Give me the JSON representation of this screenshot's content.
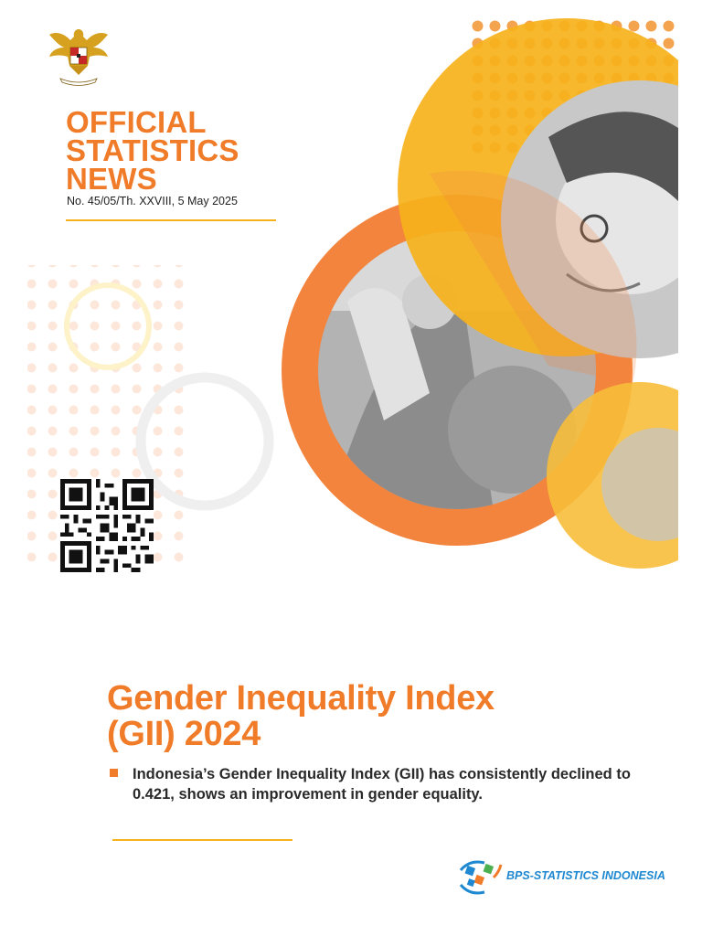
{
  "header": {
    "title_lines": [
      "OFFICIAL",
      "STATISTICS",
      "NEWS"
    ],
    "issue": "No. 45/05/Th. XXVIII, 5 May 2025"
  },
  "release": {
    "title_lines": [
      "Gender Inequality Index",
      "(GII) 2024"
    ],
    "highlight": "Indonesia’s Gender Inequality Index (GII) has consistently declined to 0.421, shows an improvement in gender equality."
  },
  "footer": {
    "agency": "BPS-STATISTICS INDONESIA"
  },
  "icons": {
    "emblem": "garuda-emblem-icon",
    "qr": "qr-code-icon",
    "agency_logo": "bps-logo-icon"
  },
  "colors": {
    "orange": "#f07c2a",
    "yellow": "#f6b21c",
    "blue": "#1e88d0"
  }
}
